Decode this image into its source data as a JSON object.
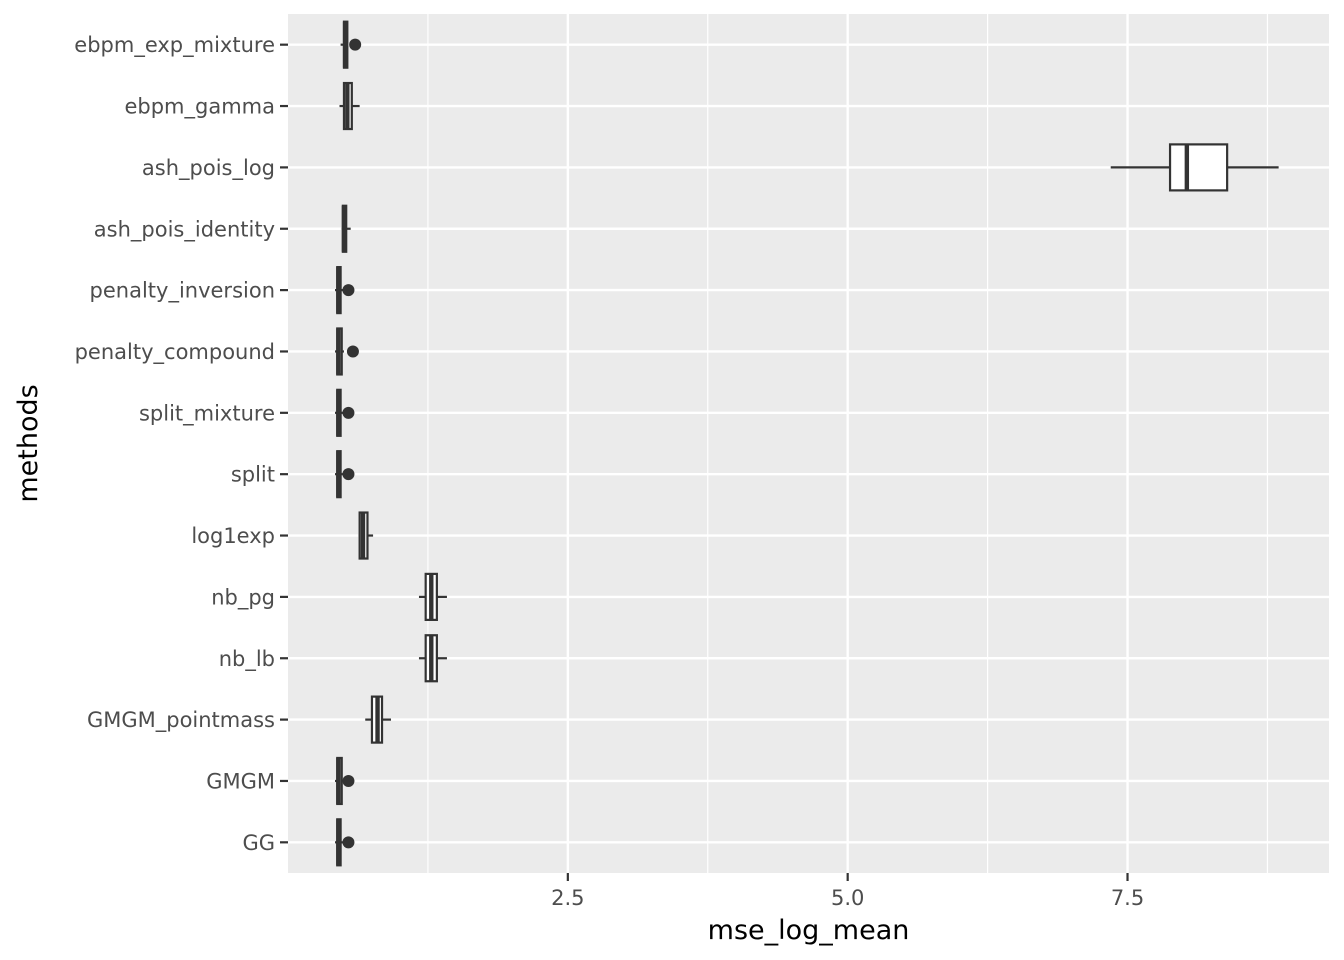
{
  "chart_data": {
    "type": "boxplot",
    "orientation": "horizontal",
    "xlabel": "mse_log_mean",
    "ylabel": "methods",
    "xlim": [
      0.0,
      9.3
    ],
    "x_ticks": [
      2.5,
      5.0,
      7.5
    ],
    "x_tick_labels": [
      "2.5",
      "5.0",
      "7.5"
    ],
    "x_minor_ticks": [
      1.25,
      3.75,
      6.25,
      8.75
    ],
    "grid": true,
    "legend": "none",
    "categories": [
      "ebpm_exp_mixture",
      "ebpm_gamma",
      "ash_pois_log",
      "ash_pois_identity",
      "penalty_inversion",
      "penalty_compound",
      "split_mixture",
      "split",
      "log1exp",
      "nb_pg",
      "nb_lb",
      "GMGM_pointmass",
      "GMGM",
      "GG"
    ],
    "boxes": [
      {
        "method": "ebpm_exp_mixture",
        "min": 0.47,
        "q1": 0.5,
        "median": 0.51,
        "q3": 0.53,
        "max": 0.53,
        "outliers": [
          0.6
        ]
      },
      {
        "method": "ebpm_gamma",
        "min": 0.46,
        "q1": 0.5,
        "median": 0.53,
        "q3": 0.57,
        "max": 0.64,
        "outliers": []
      },
      {
        "method": "ash_pois_log",
        "min": 7.35,
        "q1": 7.88,
        "median": 8.03,
        "q3": 8.39,
        "max": 8.85,
        "outliers": []
      },
      {
        "method": "ash_pois_identity",
        "min": 0.48,
        "q1": 0.49,
        "median": 0.5,
        "q3": 0.52,
        "max": 0.56,
        "outliers": []
      },
      {
        "method": "penalty_inversion",
        "min": 0.42,
        "q1": 0.44,
        "median": 0.45,
        "q3": 0.47,
        "max": 0.49,
        "outliers": [
          0.54
        ]
      },
      {
        "method": "penalty_compound",
        "min": 0.42,
        "q1": 0.44,
        "median": 0.45,
        "q3": 0.48,
        "max": 0.5,
        "outliers": [
          0.58
        ]
      },
      {
        "method": "split_mixture",
        "min": 0.42,
        "q1": 0.44,
        "median": 0.45,
        "q3": 0.47,
        "max": 0.49,
        "outliers": [
          0.54
        ]
      },
      {
        "method": "split",
        "min": 0.42,
        "q1": 0.44,
        "median": 0.45,
        "q3": 0.47,
        "max": 0.49,
        "outliers": [
          0.54
        ]
      },
      {
        "method": "log1exp",
        "min": 0.63,
        "q1": 0.64,
        "median": 0.67,
        "q3": 0.71,
        "max": 0.76,
        "outliers": []
      },
      {
        "method": "nb_pg",
        "min": 1.17,
        "q1": 1.23,
        "median": 1.28,
        "q3": 1.33,
        "max": 1.42,
        "outliers": []
      },
      {
        "method": "nb_lb",
        "min": 1.17,
        "q1": 1.23,
        "median": 1.28,
        "q3": 1.33,
        "max": 1.42,
        "outliers": []
      },
      {
        "method": "GMGM_pointmass",
        "min": 0.69,
        "q1": 0.75,
        "median": 0.8,
        "q3": 0.84,
        "max": 0.92,
        "outliers": []
      },
      {
        "method": "GMGM",
        "min": 0.42,
        "q1": 0.44,
        "median": 0.45,
        "q3": 0.48,
        "max": 0.49,
        "outliers": [
          0.54
        ]
      },
      {
        "method": "GG",
        "min": 0.42,
        "q1": 0.44,
        "median": 0.45,
        "q3": 0.47,
        "max": 0.49,
        "outliers": [
          0.54
        ]
      }
    ],
    "colors": {
      "panel_background": "#ebebeb",
      "grid_major": "#ffffff",
      "box_fill": "#ffffff",
      "box_stroke": "#333333",
      "tick_text": "#4d4d4d",
      "axis_title": "#000000"
    }
  }
}
